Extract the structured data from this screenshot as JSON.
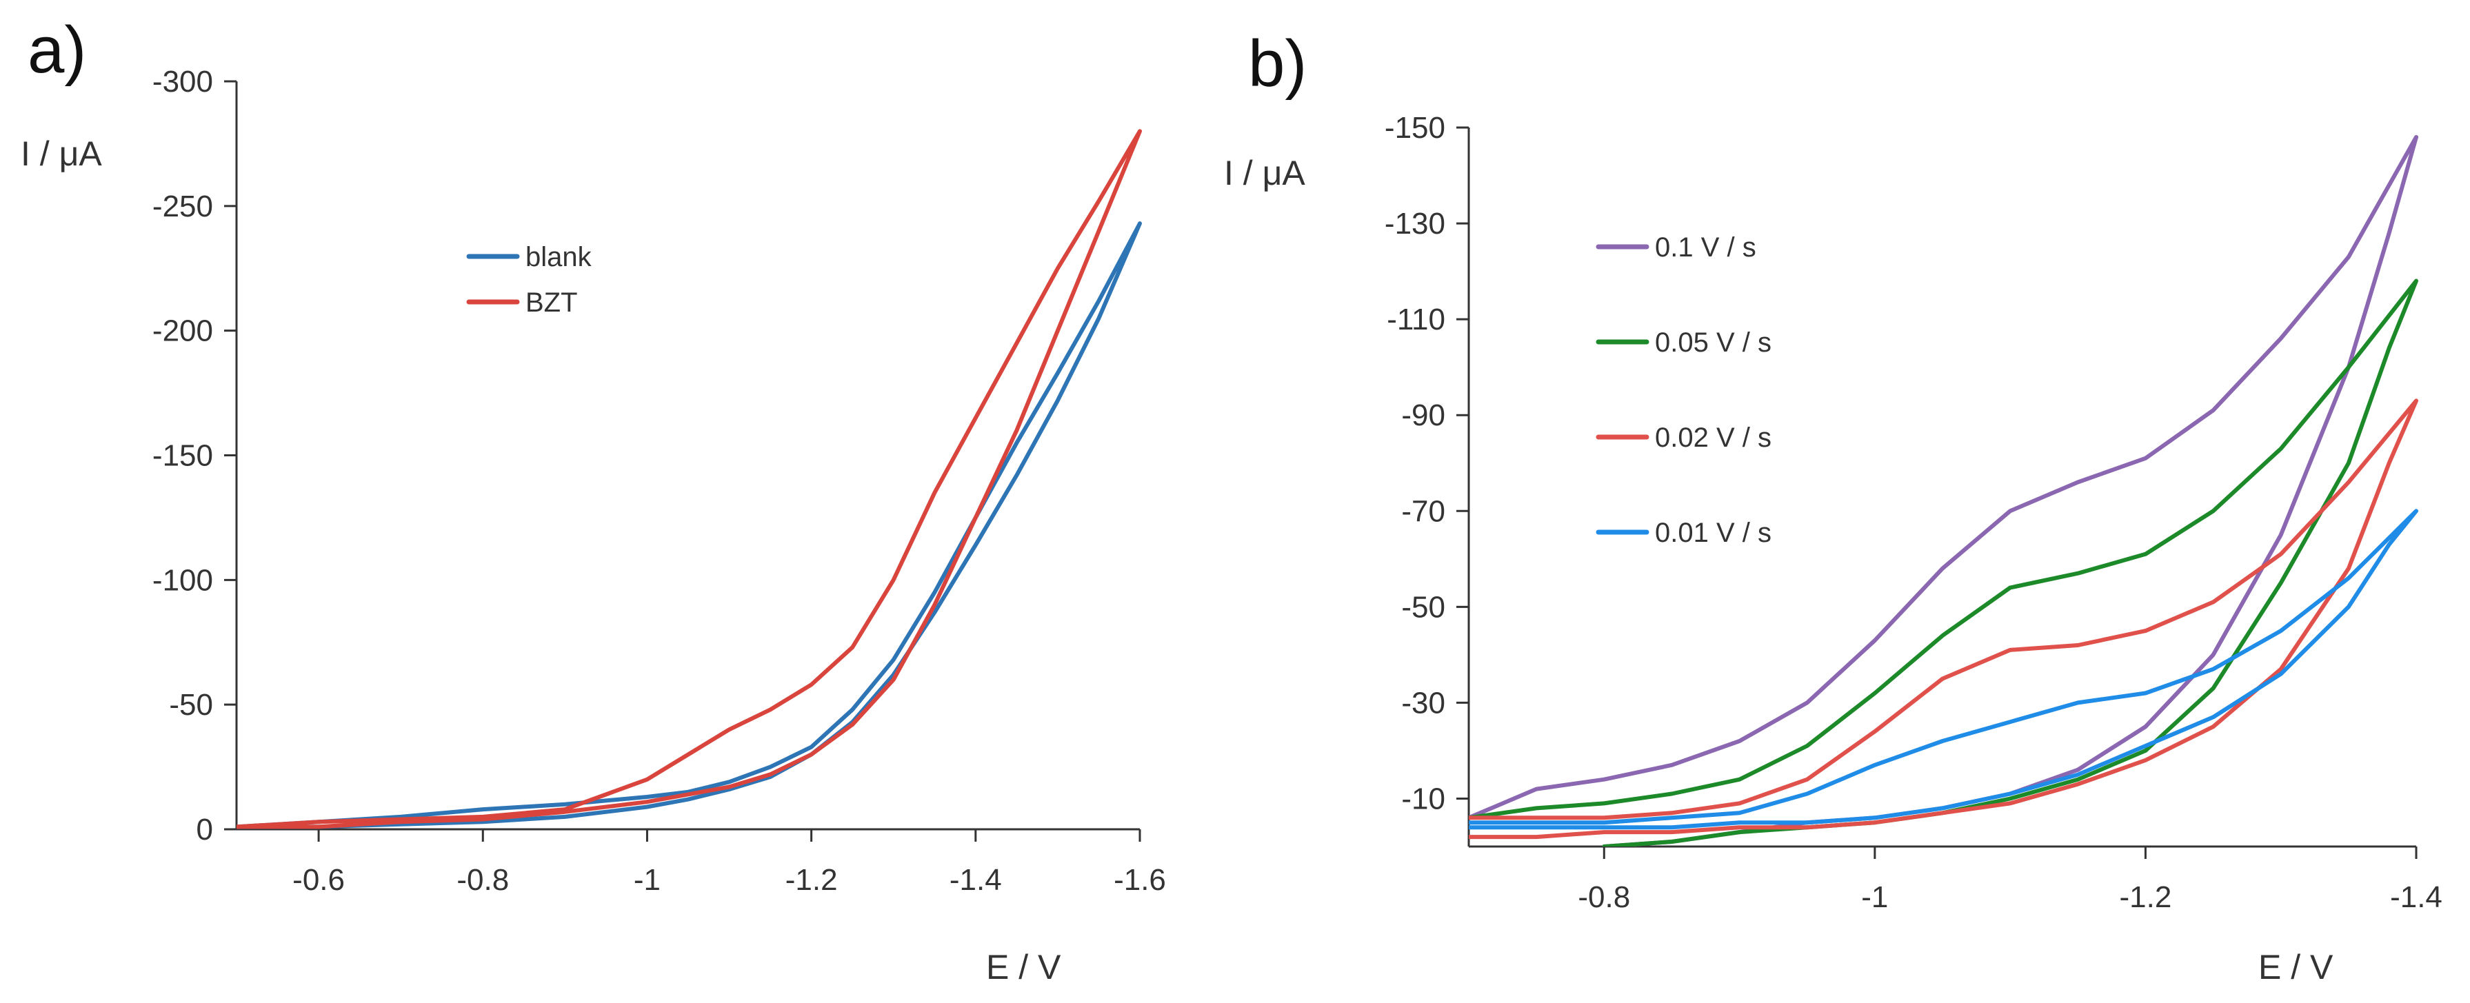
{
  "chart_data": [
    {
      "type": "line",
      "panel_label": "a)",
      "title": "",
      "xlabel": "E / V",
      "ylabel": "I / μA",
      "xlim": [
        -0.5,
        -1.6
      ],
      "ylim": [
        0,
        -300
      ],
      "xticks": [
        "-0.6",
        "-0.8",
        "-1",
        "-1.2",
        "-1.4",
        "-1.6"
      ],
      "xtick_values": [
        -0.6,
        -0.8,
        -1.0,
        -1.2,
        -1.4,
        -1.6
      ],
      "yticks": [
        "0",
        "-50",
        "-100",
        "-150",
        "-200",
        "-250",
        "-300"
      ],
      "ytick_values": [
        0,
        -50,
        -100,
        -150,
        -200,
        -250,
        -300
      ],
      "grid": false,
      "legend_position": "upper-center",
      "series": [
        {
          "name": "blank",
          "color": "#2e75b6",
          "x": [
            -0.5,
            -0.6,
            -0.7,
            -0.8,
            -0.9,
            -1.0,
            -1.05,
            -1.1,
            -1.15,
            -1.2,
            -1.25,
            -1.3,
            -1.35,
            -1.4,
            -1.45,
            -1.5,
            -1.55,
            -1.6,
            -1.55,
            -1.5,
            -1.45,
            -1.4,
            -1.35,
            -1.3,
            -1.25,
            -1.2,
            -1.15,
            -1.1,
            -1.05,
            -1.0,
            -0.9,
            -0.8,
            -0.7,
            -0.6,
            -0.5
          ],
          "y": [
            -1,
            -3,
            -5,
            -8,
            -10,
            -13,
            -15,
            -19,
            -25,
            -33,
            -48,
            -68,
            -95,
            -125,
            -155,
            -183,
            -212,
            -243,
            -205,
            -172,
            -142,
            -114,
            -87,
            -62,
            -43,
            -30,
            -21,
            -16,
            -12,
            -9,
            -5,
            -3,
            -2,
            -1,
            -1
          ]
        },
        {
          "name": "BZT",
          "color": "#d9453d",
          "x": [
            -0.5,
            -0.6,
            -0.7,
            -0.8,
            -0.9,
            -1.0,
            -1.05,
            -1.1,
            -1.15,
            -1.2,
            -1.25,
            -1.3,
            -1.35,
            -1.4,
            -1.45,
            -1.5,
            -1.55,
            -1.6,
            -1.55,
            -1.5,
            -1.45,
            -1.4,
            -1.35,
            -1.3,
            -1.25,
            -1.2,
            -1.15,
            -1.1,
            -1.05,
            -1.0,
            -0.9,
            -0.8,
            -0.7,
            -0.6,
            -0.5
          ],
          "y": [
            -1,
            -3,
            -4,
            -5,
            -8,
            -20,
            -30,
            -40,
            -48,
            -58,
            -73,
            -100,
            -135,
            -165,
            -195,
            -225,
            -252,
            -280,
            -240,
            -200,
            -160,
            -125,
            -90,
            -60,
            -42,
            -30,
            -22,
            -17,
            -14,
            -11,
            -7,
            -4,
            -3,
            -1,
            -1
          ]
        }
      ]
    },
    {
      "type": "line",
      "panel_label": "b)",
      "title": "",
      "xlabel": "E / V",
      "ylabel": "I / μA",
      "xlim": [
        -0.7,
        -1.4
      ],
      "ylim": [
        0,
        -150
      ],
      "xticks": [
        "-0.8",
        "-1",
        "-1.2",
        "-1.4"
      ],
      "xtick_values": [
        -0.8,
        -1.0,
        -1.2,
        -1.4
      ],
      "yticks": [
        "-10",
        "-30",
        "-50",
        "-70",
        "-90",
        "-110",
        "-130",
        "-150"
      ],
      "ytick_values": [
        -10,
        -30,
        -50,
        -70,
        -90,
        -110,
        -130,
        -150
      ],
      "grid": false,
      "legend_position": "upper-left",
      "series": [
        {
          "name": "0.1 V / s",
          "color": "#8a67b0",
          "x": [
            -0.7,
            -0.75,
            -0.8,
            -0.85,
            -0.9,
            -0.95,
            -1.0,
            -1.05,
            -1.1,
            -1.15,
            -1.2,
            -1.25,
            -1.3,
            -1.35,
            -1.4,
            -1.38,
            -1.35,
            -1.3,
            -1.25,
            -1.2,
            -1.15,
            -1.1,
            -1.05,
            -1.0,
            -0.95,
            -0.9,
            -0.85,
            -0.8
          ],
          "y": [
            -6,
            -12,
            -14,
            -17,
            -22,
            -30,
            -43,
            -58,
            -70,
            -76,
            -81,
            -91,
            -106,
            -123,
            -148,
            -128,
            -100,
            -65,
            -40,
            -25,
            -16,
            -11,
            -8,
            -6,
            -5,
            -3,
            -1,
            0
          ]
        },
        {
          "name": "0.05 V / s",
          "color": "#1d8a2a",
          "x": [
            -0.7,
            -0.75,
            -0.8,
            -0.85,
            -0.9,
            -0.95,
            -1.0,
            -1.05,
            -1.1,
            -1.15,
            -1.2,
            -1.25,
            -1.3,
            -1.35,
            -1.4,
            -1.38,
            -1.35,
            -1.3,
            -1.25,
            -1.2,
            -1.15,
            -1.1,
            -1.05,
            -1.0,
            -0.95,
            -0.9,
            -0.85,
            -0.8
          ],
          "y": [
            -6,
            -8,
            -9,
            -11,
            -14,
            -21,
            -32,
            -44,
            -54,
            -57,
            -61,
            -70,
            -83,
            -100,
            -118,
            -104,
            -80,
            -55,
            -33,
            -20,
            -14,
            -10,
            -7,
            -5,
            -4,
            -3,
            -1,
            0
          ]
        },
        {
          "name": "0.02 V / s",
          "color": "#e0514b",
          "x": [
            -0.7,
            -0.75,
            -0.8,
            -0.85,
            -0.9,
            -0.95,
            -1.0,
            -1.05,
            -1.1,
            -1.15,
            -1.2,
            -1.25,
            -1.3,
            -1.35,
            -1.4,
            -1.38,
            -1.35,
            -1.3,
            -1.25,
            -1.2,
            -1.15,
            -1.1,
            -1.05,
            -1.0,
            -0.95,
            -0.9,
            -0.85,
            -0.8,
            -0.75,
            -0.7
          ],
          "y": [
            -6,
            -6,
            -6,
            -7,
            -9,
            -14,
            -24,
            -35,
            -41,
            -42,
            -45,
            -51,
            -61,
            -76,
            -93,
            -80,
            -58,
            -37,
            -25,
            -18,
            -13,
            -9,
            -7,
            -5,
            -4,
            -4,
            -3,
            -3,
            -2,
            -2
          ]
        },
        {
          "name": "0.01 V / s",
          "color": "#1f8ce8",
          "x": [
            -0.7,
            -0.75,
            -0.8,
            -0.85,
            -0.9,
            -0.95,
            -1.0,
            -1.05,
            -1.1,
            -1.15,
            -1.2,
            -1.25,
            -1.3,
            -1.35,
            -1.4,
            -1.38,
            -1.35,
            -1.3,
            -1.25,
            -1.2,
            -1.15,
            -1.1,
            -1.05,
            -1.0,
            -0.95,
            -0.9,
            -0.85,
            -0.8,
            -0.75,
            -0.7
          ],
          "y": [
            -5,
            -5,
            -5,
            -6,
            -7,
            -11,
            -17,
            -22,
            -26,
            -30,
            -32,
            -37,
            -45,
            -56,
            -70,
            -63,
            -50,
            -36,
            -27,
            -21,
            -15,
            -11,
            -8,
            -6,
            -5,
            -5,
            -4,
            -4,
            -4,
            -4
          ]
        }
      ]
    }
  ]
}
